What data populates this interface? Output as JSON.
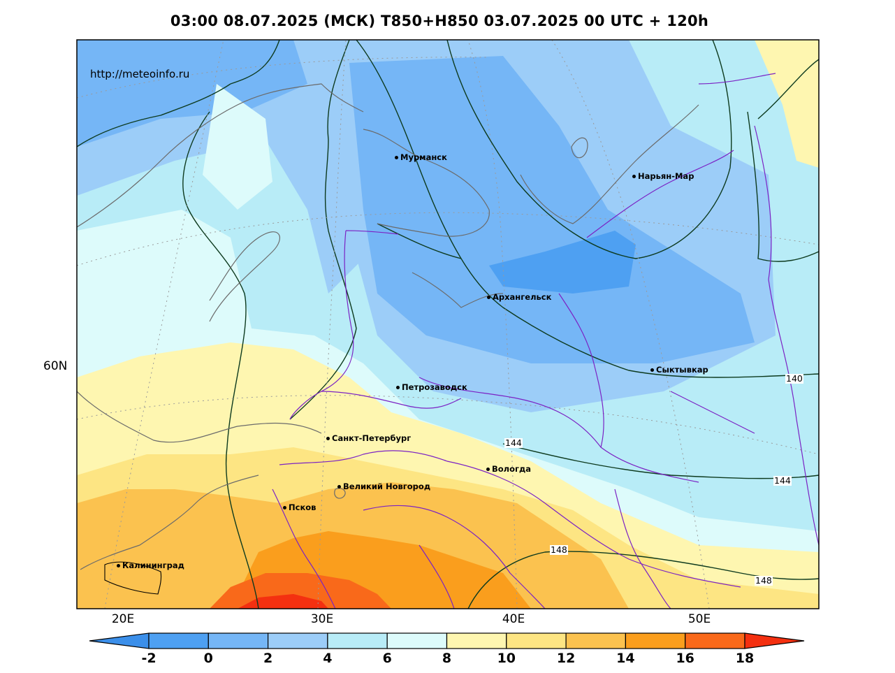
{
  "title": "03:00 08.07.2025 (МСК) T850+H850 03.07.2025 00 UTC + 120h",
  "watermark": "http://meteoinfo.ru",
  "lat_labels": [
    "60N"
  ],
  "lon_labels": [
    "20E",
    "30E",
    "40E",
    "50E"
  ],
  "colorbar": {
    "labels": [
      "-2",
      "0",
      "2",
      "4",
      "6",
      "8",
      "10",
      "12",
      "14",
      "16",
      "18"
    ],
    "colors": [
      "#3b8fea",
      "#4ea0f2",
      "#75b6f6",
      "#9ccdf8",
      "#b8ecf7",
      "#ddfbfb",
      "#fef6b0",
      "#fde583",
      "#fbc24f",
      "#fa9e1d",
      "#f9691a",
      "#f43010"
    ]
  },
  "cities": [
    "Мурманск",
    "Нарьян-Мар",
    "Архангельск",
    "Сыктывкар",
    "Петрозаводск",
    "Санкт-Петербург",
    "Вологда",
    "Великий Новгород",
    "Псков",
    "Калининград"
  ],
  "contour_labels": [
    "140",
    "144",
    "144",
    "148",
    "148"
  ]
}
